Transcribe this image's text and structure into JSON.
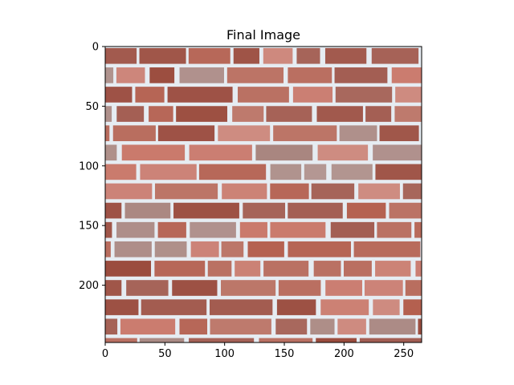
{
  "chart_data": {
    "type": "image",
    "title": "Final Image",
    "xlabel": "",
    "ylabel": "",
    "image_width": 265,
    "image_height": 248,
    "xlim": [
      0,
      265
    ],
    "ylim": [
      248,
      0
    ],
    "x_ticks": [
      0,
      50,
      100,
      150,
      200,
      250
    ],
    "y_ticks": [
      0,
      50,
      100,
      150,
      200
    ],
    "x_tick_labels": [
      "0",
      "50",
      "100",
      "150",
      "200",
      "250"
    ],
    "y_tick_labels": [
      "0",
      "50",
      "100",
      "150",
      "200"
    ],
    "grid": false,
    "legend": "none",
    "content": "brick-wall",
    "colors": {
      "mortar": "#e6ecf2",
      "brick_base": "#b4604f",
      "brick_dark": "#9a4a3c",
      "brick_light": "#c9786a",
      "brick_grey": "#a98680",
      "axis": "#000000"
    }
  }
}
